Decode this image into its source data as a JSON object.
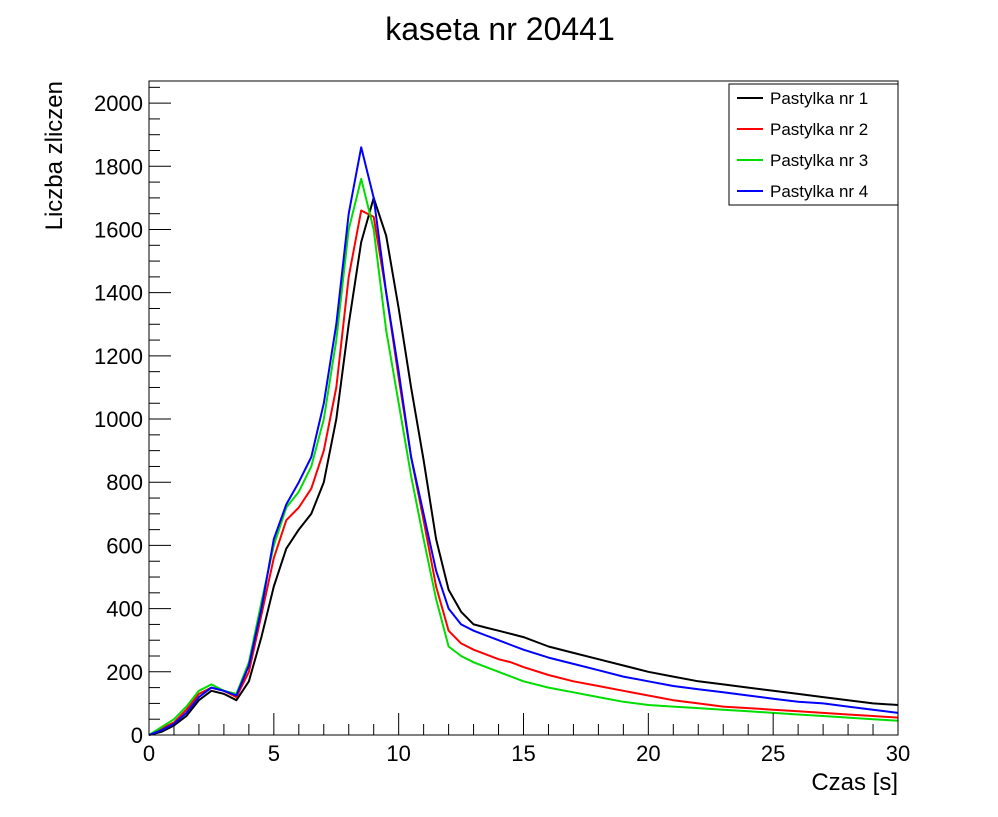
{
  "chart_data": {
    "type": "line",
    "title": "kaseta nr 20441",
    "xlabel": "Czas [s]",
    "ylabel": "Liczba zliczen",
    "xlim": [
      0,
      30
    ],
    "ylim": [
      0,
      2070
    ],
    "xticks": [
      0,
      5,
      10,
      15,
      20,
      25,
      30
    ],
    "yticks": [
      0,
      200,
      400,
      600,
      800,
      1000,
      1200,
      1400,
      1600,
      1800,
      2000
    ],
    "grid": false,
    "legend_position": "top-right",
    "x": [
      0,
      0.5,
      1,
      1.5,
      2,
      2.5,
      3,
      3.5,
      4,
      4.5,
      5,
      5.5,
      6,
      6.5,
      7,
      7.5,
      8,
      8.5,
      9,
      9.5,
      10,
      10.5,
      11,
      11.5,
      12,
      12.5,
      13,
      13.5,
      14,
      14.5,
      15,
      16,
      17,
      18,
      19,
      20,
      21,
      22,
      23,
      24,
      25,
      26,
      27,
      28,
      29,
      30
    ],
    "series": [
      {
        "name": "Pastylka nr 1",
        "color": "#000000",
        "values": [
          0,
          10,
          30,
          60,
          110,
          140,
          130,
          110,
          170,
          310,
          470,
          590,
          650,
          700,
          800,
          1000,
          1300,
          1560,
          1700,
          1580,
          1350,
          1100,
          870,
          620,
          460,
          390,
          350,
          340,
          330,
          320,
          310,
          280,
          260,
          240,
          220,
          200,
          185,
          170,
          160,
          150,
          140,
          130,
          120,
          110,
          100,
          95
        ]
      },
      {
        "name": "Pastylka nr 2",
        "color": "#ff0000",
        "values": [
          0,
          20,
          40,
          80,
          130,
          150,
          140,
          120,
          200,
          380,
          560,
          680,
          720,
          780,
          900,
          1100,
          1450,
          1660,
          1640,
          1400,
          1130,
          880,
          680,
          470,
          330,
          290,
          270,
          255,
          240,
          230,
          215,
          190,
          170,
          155,
          140,
          125,
          110,
          100,
          90,
          85,
          80,
          75,
          70,
          65,
          60,
          55
        ]
      },
      {
        "name": "Pastylka nr 3",
        "color": "#00dd00",
        "values": [
          0,
          25,
          50,
          90,
          140,
          160,
          140,
          130,
          230,
          420,
          600,
          720,
          770,
          850,
          1000,
          1250,
          1600,
          1760,
          1600,
          1280,
          1050,
          820,
          620,
          430,
          280,
          250,
          230,
          215,
          200,
          185,
          170,
          150,
          135,
          120,
          105,
          95,
          90,
          85,
          80,
          75,
          70,
          65,
          60,
          55,
          50,
          45
        ]
      },
      {
        "name": "Pastylka nr 4",
        "color": "#0000ff",
        "values": [
          0,
          15,
          35,
          70,
          120,
          150,
          140,
          125,
          220,
          400,
          620,
          730,
          800,
          880,
          1050,
          1300,
          1650,
          1860,
          1700,
          1400,
          1150,
          880,
          700,
          520,
          400,
          350,
          330,
          315,
          300,
          285,
          270,
          245,
          225,
          205,
          185,
          170,
          155,
          145,
          135,
          125,
          115,
          105,
          100,
          90,
          80,
          70
        ]
      }
    ]
  }
}
